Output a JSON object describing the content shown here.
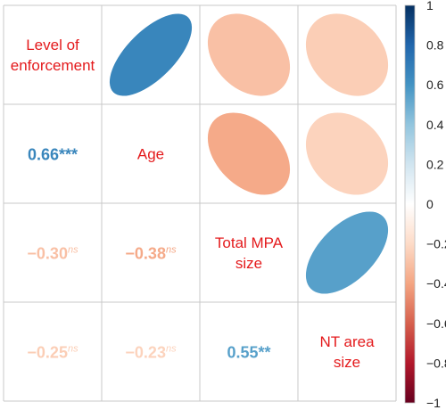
{
  "chart_data": {
    "type": "heatmap",
    "variables": [
      "Level of enforcement",
      "Age",
      "Total MPA size",
      "NT area size"
    ],
    "diagonal_labels": [
      [
        "Level of",
        "enforcement"
      ],
      [
        "Age"
      ],
      [
        "Total MPA",
        "size"
      ],
      [
        "NT area",
        "size"
      ]
    ],
    "upper_triangle_ellipses": [
      {
        "row": 0,
        "col": 1,
        "r": 0.66
      },
      {
        "row": 0,
        "col": 2,
        "r": -0.3
      },
      {
        "row": 0,
        "col": 3,
        "r": -0.25
      },
      {
        "row": 1,
        "col": 2,
        "r": -0.38
      },
      {
        "row": 1,
        "col": 3,
        "r": -0.23
      },
      {
        "row": 2,
        "col": 3,
        "r": 0.55
      }
    ],
    "lower_triangle_labels": [
      {
        "row": 1,
        "col": 0,
        "r": 0.66,
        "text": "0.66",
        "sig": "***",
        "sig_style": "normal"
      },
      {
        "row": 2,
        "col": 0,
        "r": -0.3,
        "text": "−0.30",
        "sig": "ns",
        "sig_style": "italic-superscript"
      },
      {
        "row": 2,
        "col": 1,
        "r": -0.38,
        "text": "−0.38",
        "sig": "ns",
        "sig_style": "italic-superscript"
      },
      {
        "row": 3,
        "col": 0,
        "r": -0.25,
        "text": "−0.25",
        "sig": "ns",
        "sig_style": "italic-superscript"
      },
      {
        "row": 3,
        "col": 1,
        "r": -0.23,
        "text": "−0.23",
        "sig": "ns",
        "sig_style": "italic-superscript"
      },
      {
        "row": 3,
        "col": 2,
        "r": 0.55,
        "text": "0.55",
        "sig": "**",
        "sig_style": "normal"
      }
    ],
    "colorbar": {
      "range": [
        -1,
        1
      ],
      "ticks": [
        "1",
        "0.8",
        "0.6",
        "0.4",
        "0.2",
        "0",
        "−0.2",
        "−0.4",
        "−0.6",
        "−0.8",
        "−1"
      ],
      "tick_values": [
        1,
        0.8,
        0.6,
        0.4,
        0.2,
        0,
        -0.2,
        -0.4,
        -0.6,
        -0.8,
        -1
      ],
      "colors": [
        "#67001F",
        "#B2182B",
        "#D6604D",
        "#F4A582",
        "#FDDBC7",
        "#FFFFFF",
        "#D1E5F0",
        "#92C5DE",
        "#4393C3",
        "#2166AC",
        "#053061"
      ],
      "placement": "right"
    },
    "label_color": "#E41A1C",
    "grid": true
  }
}
